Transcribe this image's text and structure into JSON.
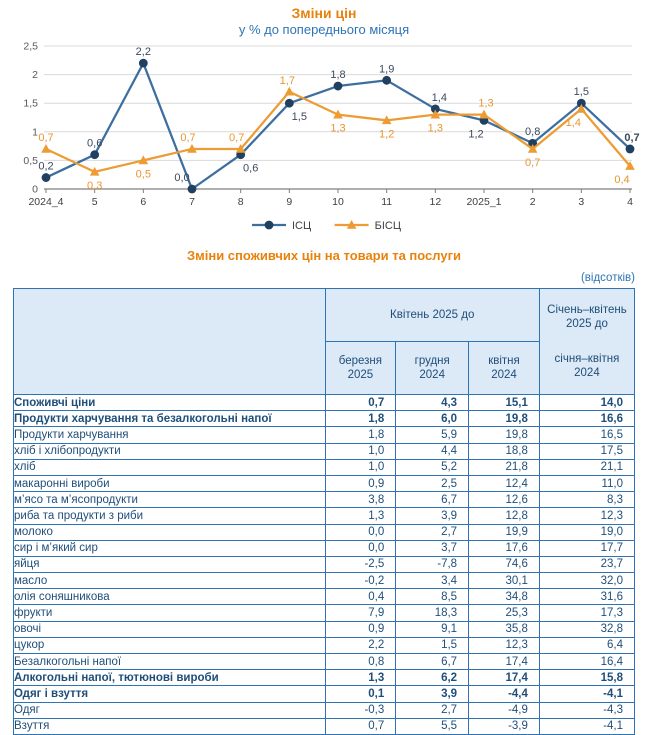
{
  "colors": {
    "title_orange": "#e8820c",
    "subtitle_blue": "#2e74b5",
    "table_text_blue": "#1f4e79",
    "table_border_blue": "#2e74b5",
    "header_bg": "#dce9f6",
    "grid_gray": "#d9d9d9",
    "axis_gray": "#7f7f7f",
    "axis_label_gray": "#404040",
    "icp_line": "#3c6e9f",
    "icp_marker": "#1f4060",
    "icp_label": "#3b4a5f",
    "bicp_line": "#ed9b33",
    "bicp_label": "#e8962f"
  },
  "chart_data": {
    "type": "line",
    "title": "Зміни цін",
    "subtitle": "у % до попереднього місяця",
    "x": [
      "2024_4",
      "5",
      "6",
      "7",
      "8",
      "9",
      "10",
      "11",
      "12",
      "2025_1",
      "2",
      "3",
      "4"
    ],
    "ylim": [
      0,
      2.5
    ],
    "yticks": [
      "0",
      "0,5",
      "1",
      "1,5",
      "2",
      "2,5"
    ],
    "grid": true,
    "legend_position": "bottom",
    "series": [
      {
        "name": "ІСЦ",
        "marker": "circle",
        "values": [
          0.2,
          0.6,
          2.2,
          0.0,
          0.6,
          1.5,
          1.8,
          1.9,
          1.4,
          1.2,
          0.8,
          1.5,
          0.7
        ],
        "labels": [
          "0,2",
          "0,6",
          "2,2",
          "0,0",
          "0,6",
          "1,5",
          "1,8",
          "1,9",
          "1,4",
          "1,2",
          "0,8",
          "1,5",
          "0,7"
        ],
        "label_pos": [
          "above",
          "above",
          "above",
          "above",
          "below",
          "below",
          "above",
          "above",
          "above",
          "below",
          "above",
          "above",
          "above"
        ],
        "label_dx": [
          0,
          0,
          0,
          -10,
          10,
          10,
          0,
          0,
          4,
          -8,
          0,
          0,
          2
        ],
        "last_label_bold": true
      },
      {
        "name": "БІСЦ",
        "marker": "triangle",
        "values": [
          0.7,
          0.3,
          0.5,
          0.7,
          0.7,
          1.7,
          1.3,
          1.2,
          1.3,
          1.3,
          0.7,
          1.4,
          0.4
        ],
        "labels": [
          "0,7",
          "0,3",
          "0,5",
          "0,7",
          "0,7",
          "1,7",
          "1,3",
          "1,2",
          "1,3",
          "1,3",
          "0,7",
          "1,4",
          "0,4"
        ],
        "label_pos": [
          "above",
          "below",
          "below",
          "above",
          "above",
          "above",
          "below",
          "below",
          "below",
          "above",
          "below",
          "below",
          "below"
        ],
        "label_dx": [
          0,
          0,
          0,
          -4,
          -4,
          -2,
          0,
          0,
          0,
          2,
          0,
          -8,
          -8
        ],
        "last_label_bold": false
      }
    ]
  },
  "table": {
    "caption": "Зміни споживчих цін на товари та послуги",
    "unit_note": "(відсотків)",
    "header_group": "Квітень 2025 до",
    "subcols": [
      "березня\n2025",
      "грудня\n2024",
      "квітня\n2024"
    ],
    "last_col_top": "Січень–квітень\n2025 до",
    "last_col_bottom": "січня–квітня\n2024",
    "rows": [
      {
        "label": "Споживчі ціни",
        "indent": 0,
        "bold": true,
        "values": [
          "0,7",
          "4,3",
          "15,1",
          "14,0"
        ]
      },
      {
        "label": "Продукти харчування та безалкогольні напої",
        "indent": 1,
        "bold": true,
        "values": [
          "1,8",
          "6,0",
          "19,8",
          "16,6"
        ]
      },
      {
        "label": "Продукти харчування",
        "indent": 2,
        "bold": false,
        "values": [
          "1,8",
          "5,9",
          "19,8",
          "16,5"
        ]
      },
      {
        "label": "хліб і хлібопродукти",
        "indent": 3,
        "bold": false,
        "values": [
          "1,0",
          "4,4",
          "18,8",
          "17,5"
        ]
      },
      {
        "label": "хліб",
        "indent": 3,
        "bold": false,
        "values": [
          "1,0",
          "5,2",
          "21,8",
          "21,1"
        ]
      },
      {
        "label": "макаронні вироби",
        "indent": 3,
        "bold": false,
        "values": [
          "0,9",
          "2,5",
          "12,4",
          "11,0"
        ]
      },
      {
        "label": "м’ясо та м’ясопродукти",
        "indent": 3,
        "bold": false,
        "values": [
          "3,8",
          "6,7",
          "12,6",
          "8,3"
        ]
      },
      {
        "label": "риба та продукти з риби",
        "indent": 3,
        "bold": false,
        "values": [
          "1,3",
          "3,9",
          "12,8",
          "12,3"
        ]
      },
      {
        "label": "молоко",
        "indent": 3,
        "bold": false,
        "values": [
          "0,0",
          "2,7",
          "19,9",
          "19,0"
        ]
      },
      {
        "label": "сир і м’який сир",
        "indent": 3,
        "bold": false,
        "values": [
          "0,0",
          "3,7",
          "17,6",
          "17,7"
        ]
      },
      {
        "label": "яйця",
        "indent": 3,
        "bold": false,
        "values": [
          "-2,5",
          "-7,8",
          "74,6",
          "23,7"
        ]
      },
      {
        "label": "масло",
        "indent": 3,
        "bold": false,
        "values": [
          "-0,2",
          "3,4",
          "30,1",
          "32,0"
        ]
      },
      {
        "label": "олія соняшникова",
        "indent": 3,
        "bold": false,
        "values": [
          "0,4",
          "8,5",
          "34,8",
          "31,6"
        ]
      },
      {
        "label": "фрукти",
        "indent": 3,
        "bold": false,
        "values": [
          "7,9",
          "18,3",
          "25,3",
          "17,3"
        ]
      },
      {
        "label": "овочі",
        "indent": 3,
        "bold": false,
        "values": [
          "0,9",
          "9,1",
          "35,8",
          "32,8"
        ]
      },
      {
        "label": "цукор",
        "indent": 3,
        "bold": false,
        "values": [
          "2,2",
          "1,5",
          "12,3",
          "6,4"
        ]
      },
      {
        "label": "Безалкогольні напої",
        "indent": 2,
        "bold": false,
        "values": [
          "0,8",
          "6,7",
          "17,4",
          "16,4"
        ]
      },
      {
        "label": "Алкогольні напої, тютюнові вироби",
        "indent": 1,
        "bold": true,
        "values": [
          "1,3",
          "6,2",
          "17,4",
          "15,8"
        ]
      },
      {
        "label": "Одяг і взуття",
        "indent": 1,
        "bold": true,
        "values": [
          "0,1",
          "3,9",
          "-4,4",
          "-4,1"
        ]
      },
      {
        "label": "Одяг",
        "indent": 2,
        "bold": false,
        "values": [
          "-0,3",
          "2,7",
          "-4,9",
          "-4,3"
        ]
      },
      {
        "label": "Взуття",
        "indent": 2,
        "bold": false,
        "values": [
          "0,7",
          "5,5",
          "-3,9",
          "-4,1"
        ]
      }
    ]
  }
}
